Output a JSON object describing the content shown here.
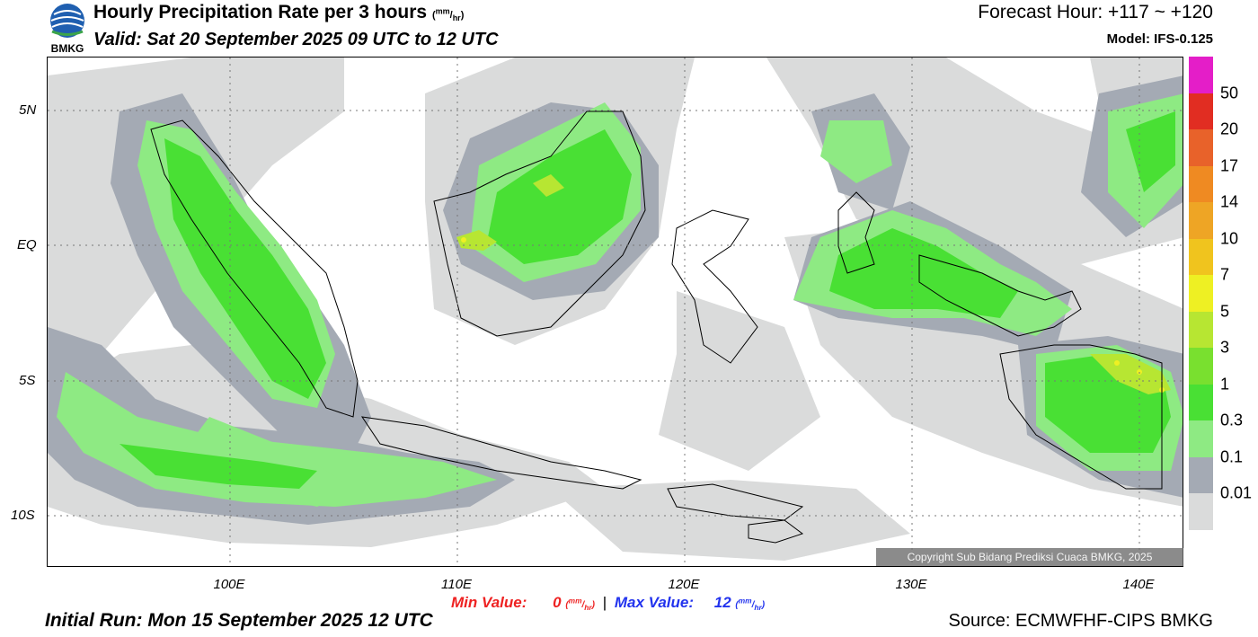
{
  "header": {
    "logo_text": "BMKG",
    "title": "Hourly Precipitation Rate per 3 hours",
    "title_unit_num": "mm",
    "title_unit_den": "hr",
    "valid": "Valid: Sat 20 September 2025 09 UTC to 12 UTC",
    "forecast_hour": "Forecast Hour: +117 ~ +120",
    "model": "Model: IFS-0.125"
  },
  "map": {
    "lat_labels": [
      "5N",
      "EQ",
      "5S",
      "10S"
    ],
    "lon_labels": [
      "100E",
      "110E",
      "120E",
      "130E",
      "140E"
    ],
    "copyright": "Copyright Sub Bidang Prediksi Cuaca BMKG, 2025"
  },
  "colorbar": {
    "labels": [
      "50",
      "20",
      "17",
      "14",
      "10",
      "7",
      "5",
      "3",
      "1",
      "0.3",
      "0.1",
      "0.01"
    ],
    "colors": [
      "#e41ec8",
      "#e12d22",
      "#e8622a",
      "#ef8a22",
      "#eea525",
      "#f0c41e",
      "#eef023",
      "#b7e632",
      "#79e02f",
      "#49e034",
      "#8eea83",
      "#a4aab4",
      "#dadbdb"
    ]
  },
  "footer": {
    "min_label": "Min Value:",
    "min_value": "0",
    "max_label": "Max Value:",
    "max_value": "12",
    "unit_num": "mm",
    "unit_den": "hr",
    "separator": "|",
    "initial_run": "Initial Run: Mon 15 September 2025 12 UTC",
    "source": "Source: ECMWFHF-CIPS BMKG"
  }
}
